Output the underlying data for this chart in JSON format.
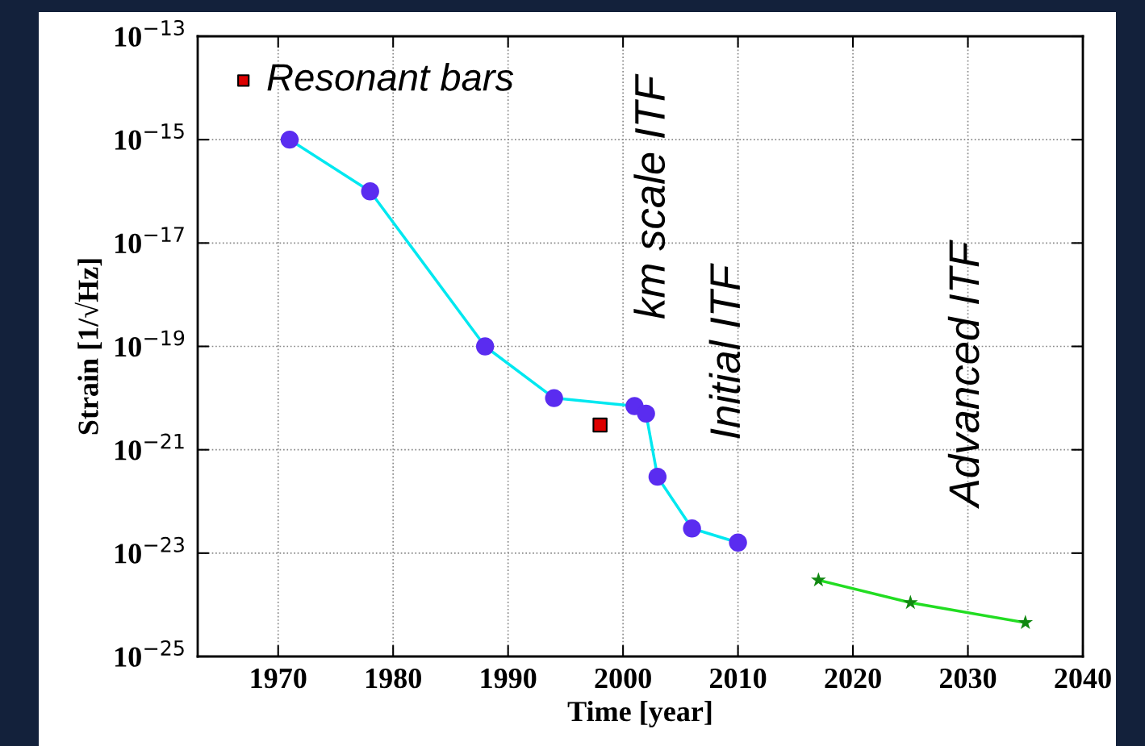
{
  "chart_data": {
    "type": "line",
    "xlabel": "Time [year]",
    "ylabel": "Strain [1/√Hz]",
    "log": "y",
    "xlim": [
      1963,
      2040
    ],
    "xticks": [
      1970,
      1980,
      1990,
      2000,
      2010,
      2020,
      2030,
      2040
    ],
    "ylim": [
      1e-25,
      1e-13
    ],
    "yticks": [
      {
        "value": 1e-25,
        "label": "10$^{−25}$"
      },
      {
        "value": 1e-23,
        "label": "10$^{−23}$"
      },
      {
        "value": 1e-21,
        "label": "10$^{−21}$"
      },
      {
        "value": 1e-19,
        "label": "10$^{−19}$"
      },
      {
        "value": 1e-17,
        "label": "10$^{−17}$"
      },
      {
        "value": 1e-15,
        "label": "10$^{−15}$"
      },
      {
        "value": 1e-13,
        "label": "10$^{−13}$"
      }
    ],
    "grid": true,
    "legend": "top left",
    "series": [
      {
        "marker": "circle",
        "color": "#00e8f0",
        "colors": [
          "#5a2cf0",
          "#5a2cf0",
          "#5a2cf0",
          "#5a2cf0",
          "#5a2cf0",
          "#5a2cf0",
          "#5a2cf0",
          "#5a2cf0",
          "#5a2cf0"
        ],
        "x": [
          1971,
          1978,
          1988,
          1994,
          2001,
          2002,
          2003,
          2006,
          2010
        ],
        "values": [
          1e-15,
          1e-16,
          1e-19,
          1e-20,
          7e-21,
          5e-21,
          3e-22,
          3e-23,
          1.6e-23
        ]
      },
      {
        "type": "scatter",
        "name": "Resonant bars",
        "marker": "square",
        "color": "#dd0000",
        "x": [
          1998
        ],
        "values": [
          3e-21
        ]
      },
      {
        "marker": "star",
        "color": "#22dd22",
        "colors": [
          "#118811",
          "#118811",
          "#118811"
        ],
        "x": [
          2017,
          2025,
          2035
        ],
        "values": [
          3e-24,
          1.1e-24,
          4.5e-25
        ]
      }
    ],
    "annotations": [
      "km scale ITF",
      "Initial ITF",
      "Advanced ITF"
    ]
  }
}
